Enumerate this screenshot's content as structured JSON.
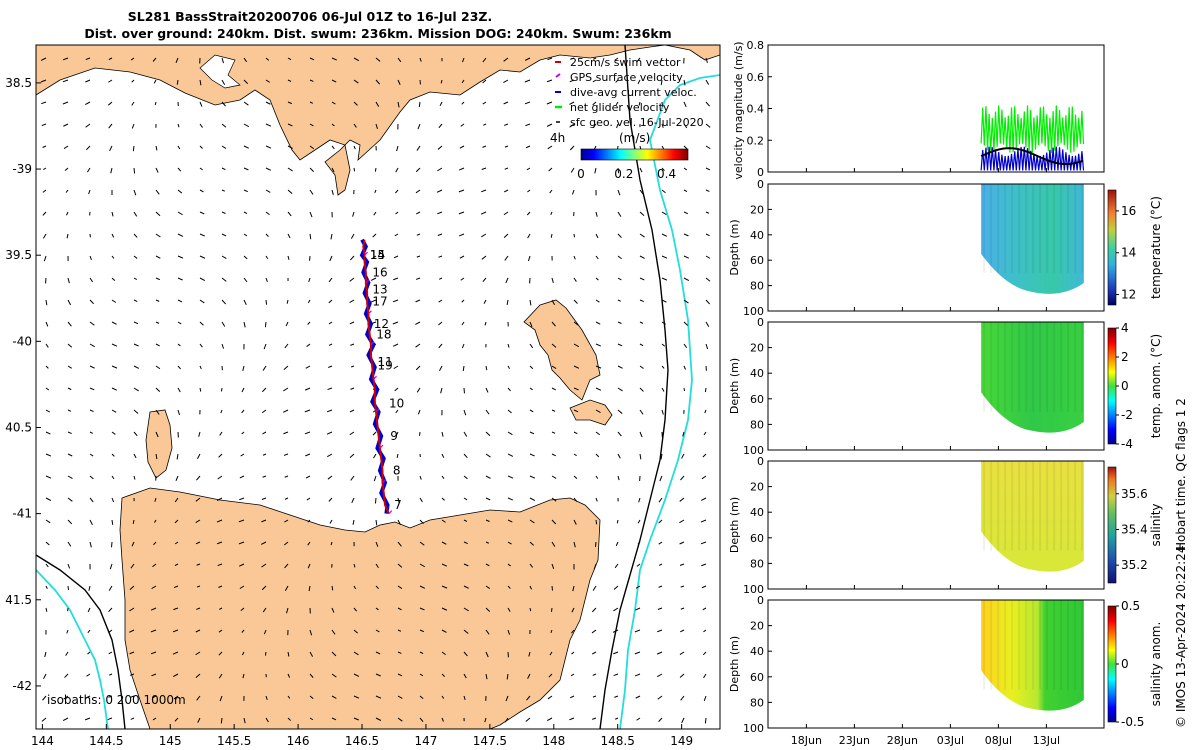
{
  "title_line1": "SL281 BassStrait20200706 06-Jul 01Z to 16-Jul 23Z.",
  "title_line2": "Dist. over ground: 240km. Dist. swum: 236km. Mission DOG: 240km. Swum: 236km",
  "colors": {
    "land": "#fac896",
    "sea": "#ffffff",
    "track": "#cc0000",
    "dive": "#0000cc",
    "gps": "#cc00cc",
    "glider_vel": "#00ee00",
    "iso200": "#000000",
    "iso1000": "#22dddd"
  },
  "map": {
    "type": "map",
    "lon_range": [
      143.95,
      149.3
    ],
    "lat_range": [
      -42.25,
      -38.28
    ],
    "x_ticks": [
      144,
      144.5,
      145,
      145.5,
      146,
      146.5,
      147,
      147.5,
      148,
      148.5,
      149
    ],
    "x_tick_labels": [
      "144",
      "144.5",
      "145",
      "145.5",
      "146",
      "146.5",
      "147",
      "147.5",
      "148",
      "148.5",
      "149"
    ],
    "y_ticks": [
      -38.5,
      -39,
      -39.5,
      -40,
      -40.5,
      -41,
      -41.5,
      -42
    ],
    "y_tick_labels": [
      "38.5",
      "-39",
      "39.5",
      "-40",
      "40.5",
      "-41",
      "41.5",
      "-42"
    ],
    "legend": [
      "25cm/s swim vector",
      "GPS surface velocity",
      "dive-avg current veloc.",
      "net glider velocity",
      "sfc geo. vel. 16-Jul-2020"
    ],
    "legend_extra": "4h",
    "colorbar_label": "(m/s)",
    "colorbar_ticks": [
      "0",
      "0.2",
      "0.4"
    ],
    "colorbar_range": [
      0,
      0.5
    ],
    "isobaths_label": "isobaths: 0   200  1000m",
    "track": [
      [
        146.71,
        -41.0
      ],
      [
        146.68,
        -40.95
      ],
      [
        146.67,
        -40.88
      ],
      [
        146.66,
        -40.82
      ],
      [
        146.66,
        -40.75
      ],
      [
        146.65,
        -40.68
      ],
      [
        146.64,
        -40.62
      ],
      [
        146.63,
        -40.55
      ],
      [
        146.62,
        -40.48
      ],
      [
        146.61,
        -40.41
      ],
      [
        146.6,
        -40.35
      ],
      [
        146.6,
        -40.28
      ],
      [
        146.59,
        -40.22
      ],
      [
        146.58,
        -40.15
      ],
      [
        146.57,
        -40.08
      ],
      [
        146.57,
        -40.02
      ],
      [
        146.56,
        -39.96
      ],
      [
        146.55,
        -39.9
      ],
      [
        146.55,
        -39.84
      ],
      [
        146.54,
        -39.78
      ],
      [
        146.54,
        -39.72
      ],
      [
        146.53,
        -39.66
      ],
      [
        146.53,
        -39.6
      ],
      [
        146.52,
        -39.54
      ],
      [
        146.52,
        -39.5
      ],
      [
        146.51,
        -39.45
      ],
      [
        146.52,
        -39.41
      ]
    ],
    "day_labels": [
      {
        "text": "7",
        "lon": 146.72,
        "lat": -40.95
      },
      {
        "text": "8",
        "lon": 146.71,
        "lat": -40.75
      },
      {
        "text": "9",
        "lon": 146.69,
        "lat": -40.55
      },
      {
        "text": "10",
        "lon": 146.68,
        "lat": -40.36
      },
      {
        "text": "11",
        "lon": 146.59,
        "lat": -40.12
      },
      {
        "text": "19",
        "lon": 146.59,
        "lat": -40.14
      },
      {
        "text": "12",
        "lon": 146.56,
        "lat": -39.9
      },
      {
        "text": "18",
        "lon": 146.58,
        "lat": -39.96
      },
      {
        "text": "17",
        "lon": 146.55,
        "lat": -39.77
      },
      {
        "text": "13",
        "lon": 146.55,
        "lat": -39.7
      },
      {
        "text": "16",
        "lon": 146.55,
        "lat": -39.6
      },
      {
        "text": "15",
        "lon": 146.53,
        "lat": -39.5
      },
      {
        "text": "14",
        "lon": 146.53,
        "lat": -39.5
      }
    ]
  },
  "chart_data": [
    {
      "type": "line",
      "ylabel": "velocity magnitude (m/s)",
      "ylim": [
        0,
        0.8
      ],
      "y_ticks": [
        0,
        0.2,
        0.4,
        0.6,
        0.8
      ],
      "y_tick_labels": [
        "0",
        "0.2",
        "0.4",
        "0.6",
        "0.8"
      ],
      "x_date_range": [
        "14Jun",
        "19Jul"
      ],
      "x_ticks": [
        "18Jun",
        "23Jun",
        "28Jun",
        "03Jul",
        "08Jul",
        "13Jul"
      ],
      "series": [
        {
          "name": "net glider velocity",
          "color": "#00ee00",
          "data_start_day": 6.0,
          "data_end_day": 16.9,
          "min": 0.12,
          "max": 0.42
        },
        {
          "name": "dive-avg current veloc.",
          "color": "#0000cc",
          "data_start_day": 6.0,
          "data_end_day": 16.9,
          "min": 0.0,
          "max": 0.16
        },
        {
          "name": "sfc geo. vel.",
          "color": "#000000",
          "data_start_day": 6.0,
          "data_end_day": 16.9,
          "min": 0.05,
          "max": 0.15
        }
      ]
    },
    {
      "type": "heatmap",
      "ylabel": "Depth (m)",
      "cbar_label": "temperature (°C)",
      "ylim": [
        100,
        0
      ],
      "y_ticks": [
        0,
        20,
        40,
        60,
        80,
        100
      ],
      "cbar_range": [
        11.5,
        17
      ],
      "cbar_ticks": [
        "12",
        "14",
        "16"
      ],
      "cbar_tick_values": [
        12,
        14,
        16
      ],
      "colormap": "thermal",
      "values_range_seen": [
        14.0,
        15.2
      ]
    },
    {
      "type": "heatmap",
      "ylabel": "Depth (m)",
      "cbar_label": "temp. anom. (°C)",
      "ylim": [
        100,
        0
      ],
      "y_ticks": [
        0,
        20,
        40,
        60,
        80,
        100
      ],
      "cbar_range": [
        -4,
        4
      ],
      "cbar_ticks": [
        "-4",
        "-2",
        "0",
        "2",
        "4"
      ],
      "cbar_tick_values": [
        -4,
        -2,
        0,
        2,
        4
      ],
      "colormap": "jet",
      "values_range_seen": [
        -0.5,
        0.6
      ]
    },
    {
      "type": "heatmap",
      "ylabel": "Depth (m)",
      "cbar_label": "salinity",
      "ylim": [
        100,
        0
      ],
      "y_ticks": [
        0,
        20,
        40,
        60,
        80,
        100
      ],
      "cbar_range": [
        35.1,
        35.75
      ],
      "cbar_ticks": [
        "35.2",
        "35.4",
        "35.6"
      ],
      "cbar_tick_values": [
        35.2,
        35.4,
        35.6
      ],
      "colormap": "haline",
      "values_range_seen": [
        35.45,
        35.6
      ]
    },
    {
      "type": "heatmap",
      "ylabel": "Depth (m)",
      "cbar_label": "salinity anom.",
      "ylim": [
        100,
        0
      ],
      "y_ticks": [
        0,
        20,
        40,
        60,
        80,
        100
      ],
      "cbar_range": [
        -0.5,
        0.5
      ],
      "cbar_ticks": [
        "-0.5",
        "0",
        "0.5"
      ],
      "cbar_tick_values": [
        -0.5,
        0,
        0.5
      ],
      "colormap": "jet",
      "values_range_seen": [
        -0.08,
        0.2
      ]
    }
  ],
  "side_text_qc": "Hobart time. QC flags 1  2",
  "side_text_credit": "© IMOS 13-Apr-2024 20:22:24"
}
